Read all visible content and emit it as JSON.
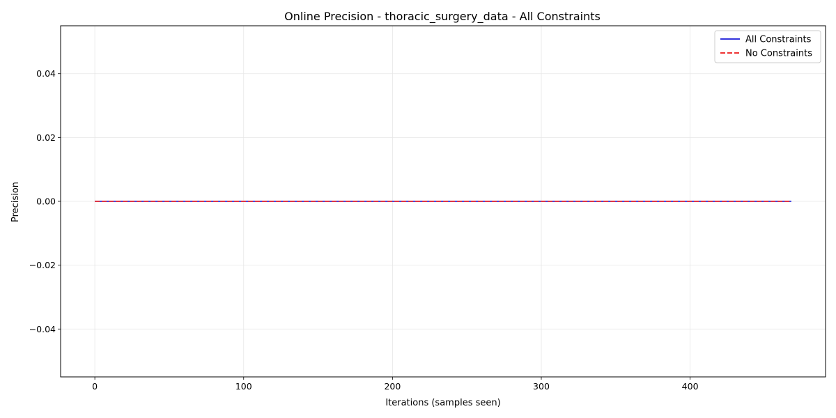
{
  "chart_data": {
    "type": "line",
    "title": "Online Precision - thoracic_surgery_data - All Constraints",
    "xlabel": "Iterations (samples seen)",
    "ylabel": "Precision",
    "xlim": [
      -23,
      491
    ],
    "ylim": [
      -0.055,
      0.055
    ],
    "xticks": [
      0,
      100,
      200,
      300,
      400
    ],
    "yticks": [
      -0.04,
      -0.02,
      0.0,
      0.02,
      0.04
    ],
    "ytick_labels": [
      "−0.04",
      "−0.02",
      "0.00",
      "0.02",
      "0.04"
    ],
    "grid": true,
    "legend_position": "top-right",
    "series": [
      {
        "name": "All Constraints",
        "color": "#3333dd",
        "style": "solid",
        "x": [
          0,
          468
        ],
        "y": [
          0.0,
          0.0
        ]
      },
      {
        "name": "No Constraints",
        "color": "#ee3333",
        "style": "dashed",
        "x": [
          0,
          468
        ],
        "y": [
          0.0,
          0.0
        ]
      }
    ]
  }
}
